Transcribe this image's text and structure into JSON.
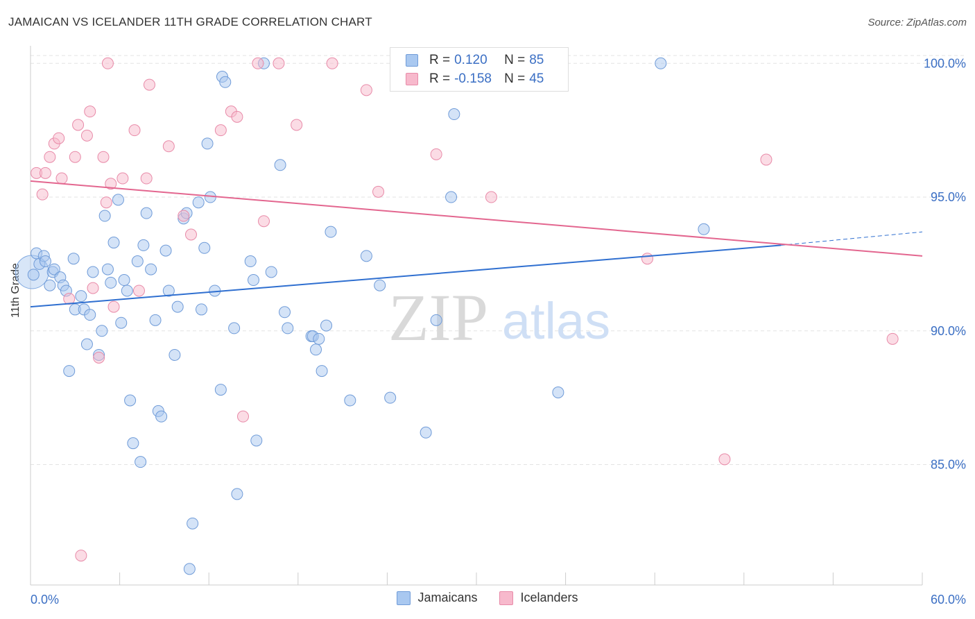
{
  "header": {
    "title": "JAMAICAN VS ICELANDER 11TH GRADE CORRELATION CHART",
    "source": "Source: ZipAtlas.com"
  },
  "watermark": {
    "zip": "ZIP",
    "atlas": "atlas"
  },
  "legend": {
    "rows": [
      {
        "r_label": "R =",
        "r_value": "0.120",
        "n_label": "N =",
        "n_value": "85",
        "color": "#a9c8f0"
      },
      {
        "r_label": "R =",
        "r_value": "-0.158",
        "n_label": "N =",
        "n_value": "45",
        "color": "#f7b9cc"
      }
    ]
  },
  "bottom_legend": {
    "items": [
      {
        "label": "Jamaicans",
        "color": "#a9c8f0"
      },
      {
        "label": "Icelanders",
        "color": "#f7b9cc"
      }
    ]
  },
  "colors": {
    "blue_line": "#2f6fd0",
    "pink_line": "#e3668f",
    "blue_fill": "#a9c8f0",
    "pink_fill": "#f7b9cc",
    "tick_label": "#3b6fc4",
    "grid": "#e3e3e3"
  },
  "chart_data": {
    "type": "scatter",
    "title": "JAMAICAN VS ICELANDER 11TH GRADE CORRELATION CHART",
    "xlabel": "",
    "ylabel": "11th Grade",
    "xlim": [
      0,
      60
    ],
    "ylim": [
      80.5,
      100.5
    ],
    "x_tick_labels": [
      "0.0%",
      "60.0%"
    ],
    "y_ticks": [
      85,
      90,
      95,
      100
    ],
    "y_tick_labels": [
      "85.0%",
      "90.0%",
      "95.0%",
      "100.0%"
    ],
    "grid": true,
    "legend_position": "top-center",
    "series": [
      {
        "name": "Jamaicans",
        "color": "#a9c8f0",
        "trend": {
          "x": [
            0,
            50.5
          ],
          "y": [
            90.9,
            93.2
          ],
          "dashed_extension": {
            "x": [
              50.5,
              60
            ],
            "y": [
              93.2,
              93.7
            ]
          }
        },
        "points": [
          [
            0.2,
            92.1
          ],
          [
            0.4,
            92.9
          ],
          [
            0.6,
            92.5
          ],
          [
            0.9,
            92.8
          ],
          [
            1.0,
            92.6
          ],
          [
            1.3,
            91.7
          ],
          [
            1.5,
            92.2
          ],
          [
            1.6,
            92.3
          ],
          [
            2.0,
            92.0
          ],
          [
            2.2,
            91.7
          ],
          [
            2.4,
            91.5
          ],
          [
            2.6,
            88.5
          ],
          [
            2.9,
            92.7
          ],
          [
            3.0,
            90.8
          ],
          [
            3.4,
            91.3
          ],
          [
            3.6,
            90.8
          ],
          [
            3.8,
            89.5
          ],
          [
            4.0,
            90.6
          ],
          [
            4.2,
            92.2
          ],
          [
            4.6,
            89.1
          ],
          [
            4.8,
            90.0
          ],
          [
            5.0,
            94.3
          ],
          [
            5.2,
            92.3
          ],
          [
            5.4,
            91.8
          ],
          [
            5.6,
            93.3
          ],
          [
            5.9,
            94.9
          ],
          [
            6.1,
            90.3
          ],
          [
            6.3,
            91.9
          ],
          [
            6.5,
            91.5
          ],
          [
            6.7,
            87.4
          ],
          [
            6.9,
            85.8
          ],
          [
            7.2,
            92.6
          ],
          [
            7.4,
            85.1
          ],
          [
            7.6,
            93.2
          ],
          [
            7.8,
            94.4
          ],
          [
            8.1,
            92.3
          ],
          [
            8.4,
            90.4
          ],
          [
            8.6,
            87.0
          ],
          [
            8.8,
            86.8
          ],
          [
            9.1,
            93.0
          ],
          [
            9.3,
            91.5
          ],
          [
            9.7,
            89.1
          ],
          [
            9.9,
            90.9
          ],
          [
            10.3,
            94.2
          ],
          [
            10.5,
            94.4
          ],
          [
            10.7,
            81.1
          ],
          [
            10.9,
            82.8
          ],
          [
            11.3,
            94.8
          ],
          [
            11.5,
            90.8
          ],
          [
            11.7,
            93.1
          ],
          [
            11.9,
            97.0
          ],
          [
            12.1,
            95.0
          ],
          [
            12.4,
            91.5
          ],
          [
            12.8,
            87.8
          ],
          [
            12.9,
            99.5
          ],
          [
            13.1,
            99.3
          ],
          [
            13.7,
            90.1
          ],
          [
            13.9,
            83.9
          ],
          [
            14.8,
            92.6
          ],
          [
            15.0,
            91.9
          ],
          [
            15.2,
            85.9
          ],
          [
            15.7,
            100.0
          ],
          [
            16.2,
            92.2
          ],
          [
            16.8,
            96.2
          ],
          [
            17.1,
            90.7
          ],
          [
            17.3,
            90.1
          ],
          [
            18.9,
            89.8
          ],
          [
            19.0,
            89.8
          ],
          [
            19.2,
            89.3
          ],
          [
            19.4,
            89.7
          ],
          [
            19.6,
            88.5
          ],
          [
            19.9,
            90.2
          ],
          [
            20.2,
            93.7
          ],
          [
            21.5,
            87.4
          ],
          [
            22.6,
            92.8
          ],
          [
            23.5,
            91.7
          ],
          [
            24.2,
            87.5
          ],
          [
            26.6,
            86.2
          ],
          [
            27.1,
            100.0
          ],
          [
            27.3,
            90.4
          ],
          [
            28.3,
            95.0
          ],
          [
            28.5,
            98.1
          ],
          [
            35.5,
            87.7
          ],
          [
            42.4,
            100.0
          ],
          [
            45.3,
            93.8
          ]
        ]
      },
      {
        "name": "Icelanders",
        "color": "#f7b9cc",
        "trend": {
          "x": [
            0,
            60
          ],
          "y": [
            95.6,
            92.8
          ]
        },
        "points": [
          [
            0.4,
            95.9
          ],
          [
            0.8,
            95.1
          ],
          [
            1.0,
            95.9
          ],
          [
            1.3,
            96.5
          ],
          [
            1.6,
            97.0
          ],
          [
            1.9,
            97.2
          ],
          [
            2.1,
            95.7
          ],
          [
            2.6,
            91.2
          ],
          [
            3.0,
            96.5
          ],
          [
            3.2,
            97.7
          ],
          [
            3.4,
            81.6
          ],
          [
            3.8,
            97.3
          ],
          [
            4.0,
            98.2
          ],
          [
            4.2,
            91.6
          ],
          [
            4.6,
            89.0
          ],
          [
            4.9,
            96.5
          ],
          [
            5.1,
            94.8
          ],
          [
            5.2,
            100.0
          ],
          [
            5.4,
            95.5
          ],
          [
            5.6,
            90.9
          ],
          [
            6.2,
            95.7
          ],
          [
            7.0,
            97.5
          ],
          [
            7.3,
            91.5
          ],
          [
            7.8,
            95.7
          ],
          [
            8.0,
            99.2
          ],
          [
            9.3,
            96.9
          ],
          [
            10.3,
            94.3
          ],
          [
            10.8,
            93.6
          ],
          [
            12.8,
            97.5
          ],
          [
            13.5,
            98.2
          ],
          [
            13.9,
            98.0
          ],
          [
            14.3,
            86.8
          ],
          [
            15.3,
            100.0
          ],
          [
            15.7,
            94.1
          ],
          [
            16.7,
            100.0
          ],
          [
            17.9,
            97.7
          ],
          [
            20.3,
            100.0
          ],
          [
            22.6,
            99.0
          ],
          [
            23.4,
            95.2
          ],
          [
            27.3,
            96.6
          ],
          [
            31.0,
            95.0
          ],
          [
            41.5,
            92.7
          ],
          [
            46.7,
            85.2
          ],
          [
            49.5,
            96.4
          ],
          [
            58.0,
            89.7
          ]
        ]
      }
    ]
  }
}
